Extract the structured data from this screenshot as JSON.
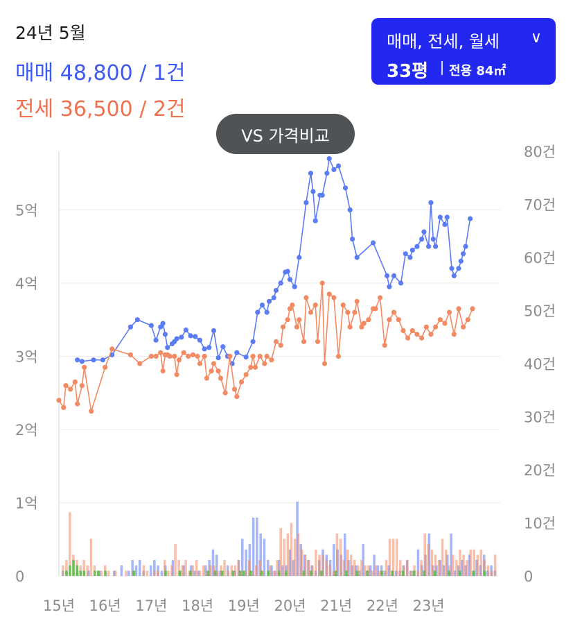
{
  "header": {
    "date": "24년 5월",
    "sale_summary": "매매 48,800 / 1건",
    "jeonse_summary": "전세 36,500 / 2건"
  },
  "filter": {
    "types": "매매, 전세, 월세",
    "chevron_icon": "chevron-down-icon",
    "size": "33평",
    "area": "전용 84㎡"
  },
  "compare_button": {
    "label": "VS 가격비교"
  },
  "colors": {
    "sale": "#5b7cf2",
    "jeonse": "#f28b64",
    "monthly": "#5cbf4c",
    "filter_bg": "#2228f0",
    "button_bg": "#505356"
  },
  "chart_data": {
    "type": "line",
    "title": "",
    "xlabel": "",
    "ylabel": "",
    "x_ticks": [
      "15년",
      "16년",
      "17년",
      "18년",
      "19년",
      "20년",
      "21년",
      "22년",
      "23년"
    ],
    "y_left_ticks": [
      "0",
      "1억",
      "2억",
      "3억",
      "4억",
      "5억"
    ],
    "y_right_ticks": [
      "0",
      "10건",
      "20건",
      "30건",
      "40건",
      "50건",
      "60건",
      "70건",
      "80건"
    ],
    "y_left_range": [
      0,
      58000
    ],
    "y_right_range": [
      0,
      80
    ],
    "x_range": [
      2015.0,
      2024.55
    ],
    "grid": true,
    "series": [
      {
        "key": "sale",
        "type": "line",
        "axis": "left",
        "x": [
          2015.4,
          2015.5,
          2015.75,
          2015.95,
          2016.15,
          2016.55,
          2016.7,
          2017.0,
          2017.1,
          2017.2,
          2017.25,
          2017.3,
          2017.35,
          2017.45,
          2017.5,
          2017.55,
          2017.65,
          2017.75,
          2017.85,
          2017.95,
          2018.05,
          2018.15,
          2018.25,
          2018.35,
          2018.45,
          2018.55,
          2018.65,
          2018.75,
          2018.85,
          2019.05,
          2019.2,
          2019.3,
          2019.4,
          2019.5,
          2019.55,
          2019.65,
          2019.7,
          2019.8,
          2019.9,
          2019.95,
          2020.0,
          2020.1,
          2020.2,
          2020.35,
          2020.45,
          2020.5,
          2020.55,
          2020.65,
          2020.7,
          2020.8,
          2020.85,
          2020.95,
          2021.05,
          2021.2,
          2021.3,
          2021.35,
          2021.45,
          2021.8,
          2022.1,
          2022.15,
          2022.25,
          2022.4,
          2022.5,
          2022.6,
          2022.65,
          2022.75,
          2022.85,
          2022.9,
          2023.0,
          2023.05,
          2023.1,
          2023.15,
          2023.25,
          2023.35,
          2023.4,
          2023.5,
          2023.55,
          2023.65,
          2023.7,
          2023.75,
          2023.8,
          2023.9
        ],
        "values": [
          29500,
          29300,
          29500,
          29500,
          30200,
          34000,
          35000,
          34200,
          32200,
          34000,
          34500,
          33000,
          31200,
          31700,
          32000,
          32400,
          32600,
          33600,
          32800,
          32700,
          32200,
          31000,
          31200,
          33500,
          29800,
          31300,
          30000,
          29000,
          30500,
          29900,
          32000,
          36000,
          37000,
          36000,
          37500,
          38000,
          39000,
          40000,
          41500,
          41600,
          40500,
          39500,
          43500,
          51000,
          55000,
          52500,
          48500,
          52000,
          52000,
          55000,
          57000,
          55500,
          56000,
          53000,
          50000,
          46000,
          43500,
          45500,
          41000,
          39500,
          41000,
          40000,
          44000,
          43500,
          44500,
          45000,
          46000,
          47000,
          45000,
          51000,
          46000,
          45000,
          49000,
          48000,
          49000,
          42000,
          41000,
          42000,
          43000,
          44000,
          45000,
          48800
        ]
      },
      {
        "key": "jeonse",
        "type": "line",
        "axis": "left",
        "x": [
          2015.0,
          2015.1,
          2015.15,
          2015.25,
          2015.35,
          2015.4,
          2015.5,
          2015.55,
          2015.7,
          2016.0,
          2016.15,
          2016.55,
          2016.75,
          2017.0,
          2017.1,
          2017.2,
          2017.25,
          2017.3,
          2017.35,
          2017.4,
          2017.5,
          2017.55,
          2017.6,
          2017.7,
          2017.8,
          2017.9,
          2018.0,
          2018.05,
          2018.15,
          2018.2,
          2018.3,
          2018.35,
          2018.45,
          2018.5,
          2018.6,
          2018.7,
          2018.8,
          2018.85,
          2018.95,
          2019.05,
          2019.15,
          2019.2,
          2019.25,
          2019.35,
          2019.45,
          2019.5,
          2019.6,
          2019.7,
          2019.8,
          2019.85,
          2019.95,
          2020.0,
          2020.05,
          2020.15,
          2020.2,
          2020.3,
          2020.35,
          2020.45,
          2020.55,
          2020.6,
          2020.7,
          2020.75,
          2020.85,
          2020.95,
          2021.05,
          2021.15,
          2021.25,
          2021.3,
          2021.4,
          2021.45,
          2021.55,
          2021.6,
          2021.7,
          2021.8,
          2021.85,
          2021.95,
          2022.05,
          2022.15,
          2022.25,
          2022.35,
          2022.45,
          2022.55,
          2022.65,
          2022.75,
          2022.85,
          2022.95,
          2023.05,
          2023.15,
          2023.25,
          2023.35,
          2023.45,
          2023.55,
          2023.65,
          2023.75,
          2023.85,
          2023.95
        ],
        "values": [
          24000,
          23000,
          26000,
          25500,
          26500,
          23500,
          26000,
          28500,
          22500,
          28500,
          31000,
          30200,
          29000,
          30000,
          30000,
          30500,
          28000,
          30200,
          30200,
          30000,
          30000,
          27500,
          29500,
          30500,
          30000,
          30200,
          30000,
          29000,
          30000,
          27000,
          28000,
          29000,
          28000,
          27000,
          25000,
          30000,
          25500,
          24500,
          26500,
          27500,
          28500,
          30000,
          28500,
          30000,
          29000,
          30000,
          29500,
          32000,
          31500,
          34000,
          35000,
          36500,
          37000,
          34000,
          35000,
          32000,
          38000,
          36000,
          37000,
          32000,
          40000,
          29000,
          38500,
          38000,
          30000,
          37000,
          36000,
          34000,
          36000,
          37500,
          34000,
          34500,
          35000,
          36500,
          36500,
          38000,
          31500,
          35000,
          36000,
          35000,
          33500,
          32500,
          33500,
          33000,
          32500,
          34000,
          33000,
          34000,
          35000,
          34500,
          36000,
          33000,
          36500,
          34000,
          35000,
          36500
        ]
      }
    ],
    "volume_series": [
      {
        "key": "sale_volume",
        "axis": "right",
        "values": [
          1,
          1,
          0,
          0,
          1,
          0,
          0,
          1,
          0,
          0,
          1,
          0,
          0,
          0,
          1,
          0,
          2,
          0,
          1,
          3,
          2,
          3,
          1,
          0,
          2,
          3,
          2,
          1,
          2,
          0,
          3,
          0,
          1,
          2,
          0,
          2,
          1,
          1,
          0,
          2,
          3,
          5,
          4,
          1,
          0,
          2,
          0,
          1,
          3,
          7,
          5,
          6,
          11,
          11,
          8,
          7,
          3,
          2,
          1,
          3,
          2,
          2,
          5,
          3,
          14,
          6,
          4,
          3,
          2,
          1,
          3,
          5,
          4,
          3,
          6,
          5,
          4,
          8,
          3,
          2,
          2,
          1,
          6,
          1,
          2,
          4,
          2,
          2,
          1,
          2,
          1,
          1,
          1,
          2,
          3,
          1,
          1,
          5,
          2,
          4,
          8,
          2,
          2,
          3,
          2,
          4,
          8,
          1,
          2,
          3,
          2,
          4,
          1,
          3,
          2,
          4,
          1,
          2,
          1
        ]
      },
      {
        "key": "jeonse_volume",
        "axis": "right",
        "values": [
          2,
          3,
          12,
          4,
          3,
          2,
          3,
          2,
          7,
          2,
          1,
          1,
          2,
          1,
          0,
          1,
          0,
          0,
          1,
          0,
          1,
          0,
          0,
          2,
          1,
          0,
          1,
          1,
          0,
          3,
          1,
          2,
          6,
          3,
          2,
          3,
          1,
          2,
          3,
          1,
          2,
          1,
          2,
          2,
          1,
          2,
          3,
          1,
          2,
          2,
          3,
          1,
          1,
          3,
          1,
          2,
          3,
          1,
          0,
          2,
          1,
          3,
          9,
          7,
          8,
          10,
          7,
          8,
          5,
          4,
          3,
          2,
          5,
          4,
          4,
          3,
          2,
          1,
          8,
          7,
          3,
          5,
          4,
          3,
          2,
          3,
          2,
          2,
          1,
          2,
          1,
          1,
          3,
          7,
          7,
          7,
          3,
          2,
          3,
          1,
          2,
          1,
          3,
          8,
          6,
          5,
          4,
          3,
          7,
          5,
          2,
          4,
          3,
          5,
          4,
          3,
          5,
          5,
          4,
          5,
          3,
          2,
          1,
          4
        ]
      },
      {
        "key": "monthly_volume",
        "axis": "right",
        "values": [
          0,
          1,
          2,
          3,
          2,
          1,
          1,
          0,
          0,
          1,
          1,
          0,
          1,
          0,
          0,
          0,
          0,
          0,
          0,
          0,
          1,
          0,
          0,
          0,
          0,
          0,
          0,
          0,
          0,
          1,
          0,
          0,
          0,
          1,
          0,
          0,
          1,
          0,
          0,
          0,
          0,
          1,
          0,
          1,
          0,
          1,
          0,
          0,
          1,
          0,
          1,
          1,
          0,
          1,
          0,
          0,
          1,
          0,
          1,
          0,
          0,
          1,
          0,
          1,
          0,
          0,
          0,
          0,
          1,
          0,
          1,
          0,
          0,
          1,
          0,
          0,
          0,
          1,
          0,
          0,
          1,
          0,
          0,
          1,
          0,
          0,
          1,
          0,
          0,
          0,
          1,
          0,
          0,
          1,
          0,
          0,
          1,
          0,
          0,
          1,
          0,
          0,
          1,
          0,
          0,
          1,
          0,
          0,
          0,
          1,
          0,
          0,
          1,
          0,
          0,
          0,
          1,
          0,
          0,
          1,
          0,
          0,
          0
        ]
      }
    ]
  }
}
